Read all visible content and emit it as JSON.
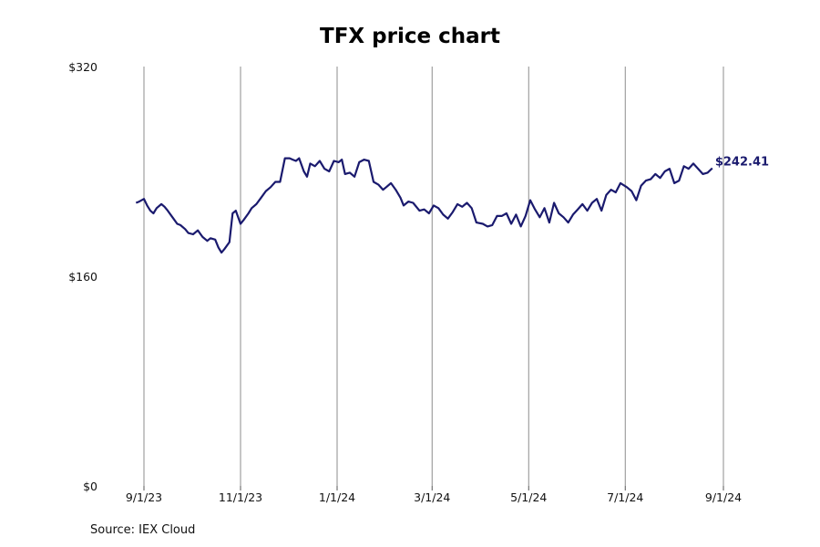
{
  "chart_data": {
    "type": "line",
    "title": "TFX price chart",
    "source": "Source: IEX Cloud",
    "ylim": [
      0,
      320
    ],
    "ytick_values": [
      0,
      160,
      320
    ],
    "ytick_labels": [
      "$0",
      "$160",
      "$320"
    ],
    "xtick_dates": [
      "2023-09-01",
      "2023-11-01",
      "2024-01-01",
      "2024-03-01",
      "2024-05-01",
      "2024-07-01",
      "2024-09-01"
    ],
    "xtick_labels": [
      "9/1/23",
      "11/1/23",
      "1/1/24",
      "3/1/24",
      "5/1/24",
      "7/1/24",
      "9/1/24"
    ],
    "grid": "vertical",
    "line_color": "#1a1a6e",
    "last_value_label": "$242.41",
    "series": [
      {
        "x": [
          "2023-08-27",
          "2023-08-29",
          "2023-09-01",
          "2023-09-03",
          "2023-09-05",
          "2023-09-07",
          "2023-09-09",
          "2023-09-12",
          "2023-09-14",
          "2023-09-16",
          "2023-09-19",
          "2023-09-22",
          "2023-09-24",
          "2023-09-27",
          "2023-09-29",
          "2023-10-02",
          "2023-10-05",
          "2023-10-08",
          "2023-10-11",
          "2023-10-13",
          "2023-10-16",
          "2023-10-18",
          "2023-10-20",
          "2023-10-22",
          "2023-10-25",
          "2023-10-27",
          "2023-10-29",
          "2023-11-01",
          "2023-11-03",
          "2023-11-06",
          "2023-11-08",
          "2023-11-11",
          "2023-11-14",
          "2023-11-17",
          "2023-11-20",
          "2023-11-23",
          "2023-11-26",
          "2023-11-29",
          "2023-12-02",
          "2023-12-04",
          "2023-12-06",
          "2023-12-08",
          "2023-12-11",
          "2023-12-13",
          "2023-12-15",
          "2023-12-18",
          "2023-12-21",
          "2023-12-24",
          "2023-12-27",
          "2023-12-30",
          "2024-01-02",
          "2024-01-04",
          "2024-01-06",
          "2024-01-09",
          "2024-01-12",
          "2024-01-15",
          "2024-01-18",
          "2024-01-21",
          "2024-01-24",
          "2024-01-27",
          "2024-01-30",
          "2024-02-01",
          "2024-02-04",
          "2024-02-07",
          "2024-02-10",
          "2024-02-12",
          "2024-02-15",
          "2024-02-18",
          "2024-02-22",
          "2024-02-25",
          "2024-02-28",
          "2024-03-02",
          "2024-03-05",
          "2024-03-08",
          "2024-03-11",
          "2024-03-14",
          "2024-03-17",
          "2024-03-20",
          "2024-03-23",
          "2024-03-26",
          "2024-03-29",
          "2024-04-02",
          "2024-04-05",
          "2024-04-08",
          "2024-04-11",
          "2024-04-14",
          "2024-04-17",
          "2024-04-20",
          "2024-04-23",
          "2024-04-26",
          "2024-04-29",
          "2024-05-02",
          "2024-05-05",
          "2024-05-08",
          "2024-05-11",
          "2024-05-14",
          "2024-05-17",
          "2024-05-20",
          "2024-05-23",
          "2024-05-26",
          "2024-05-29",
          "2024-06-01",
          "2024-06-04",
          "2024-06-07",
          "2024-06-10",
          "2024-06-13",
          "2024-06-16",
          "2024-06-19",
          "2024-06-22",
          "2024-06-25",
          "2024-06-28",
          "2024-07-02",
          "2024-07-05",
          "2024-07-08",
          "2024-07-11",
          "2024-07-14",
          "2024-07-17",
          "2024-07-20",
          "2024-07-23",
          "2024-07-26",
          "2024-07-29",
          "2024-08-01",
          "2024-08-04",
          "2024-08-07",
          "2024-08-10",
          "2024-08-13",
          "2024-08-16",
          "2024-08-19",
          "2024-08-22",
          "2024-08-25"
        ],
        "values": [
          216,
          217,
          219,
          214,
          210,
          208,
          212,
          215,
          213,
          210,
          205,
          200,
          199,
          196,
          193,
          192,
          195,
          190,
          187,
          189,
          188,
          182,
          178,
          181,
          186,
          208,
          210,
          200,
          203,
          208,
          212,
          215,
          220,
          225,
          228,
          232,
          232,
          250,
          250,
          249,
          248,
          250,
          240,
          236,
          246,
          244,
          248,
          242,
          240,
          248,
          247,
          249,
          238,
          239,
          236,
          247,
          249,
          248,
          232,
          230,
          226,
          228,
          231,
          226,
          220,
          214,
          217,
          216,
          210,
          211,
          208,
          214,
          212,
          207,
          204,
          209,
          215,
          213,
          216,
          212,
          201,
          200,
          198,
          199,
          206,
          206,
          208,
          200,
          207,
          198,
          206,
          218,
          211,
          205,
          212,
          201,
          216,
          208,
          205,
          201,
          207,
          211,
          215,
          210,
          216,
          219,
          210,
          222,
          226,
          224,
          231,
          228,
          225,
          218,
          229,
          233,
          234,
          238,
          235,
          240,
          242,
          231,
          233,
          244,
          242,
          246,
          242,
          238,
          239,
          242.41
        ]
      }
    ]
  }
}
